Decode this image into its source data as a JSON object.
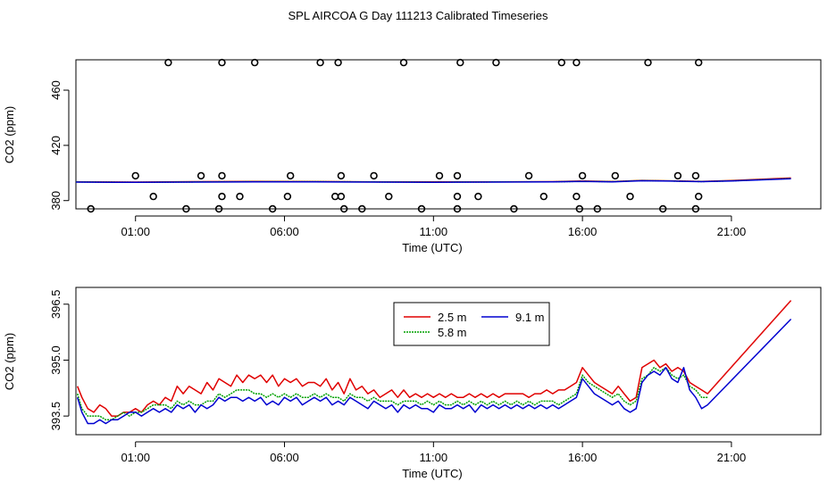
{
  "title": "SPL AIRCOA G  Day 111213  Calibrated Timeseries",
  "colors": {
    "axis": "#000000",
    "series_2_5": "#e00000",
    "series_5_8": "#00a000",
    "series_9_1": "#0000d0",
    "flags": "#000000",
    "background": "#ffffff"
  },
  "chart_data": [
    {
      "id": "top",
      "type": "line",
      "xlabel": "Time (UTC)",
      "ylabel": "CO2 (ppm)",
      "xunit": "hours UTC",
      "xlim": [
        -1.0,
        24.0
      ],
      "ylim": [
        374,
        482
      ],
      "xticks": [
        1,
        6,
        11,
        16,
        21
      ],
      "xticklabels": [
        "01:00",
        "06:00",
        "11:00",
        "16:00",
        "21:00"
      ],
      "yticks": [
        380,
        420,
        460
      ],
      "yticklabels": [
        "380",
        "420",
        "460"
      ],
      "series": [
        {
          "name": "2.5 m",
          "color_key": "series_2_5",
          "x": [
            -1.0,
            1,
            3,
            5,
            7,
            9,
            11,
            13,
            15,
            16,
            17,
            18,
            19,
            20,
            21,
            23
          ],
          "y": [
            393.6,
            393.4,
            393.7,
            393.9,
            393.8,
            393.6,
            393.5,
            393.6,
            393.7,
            394.2,
            393.8,
            394.6,
            394.3,
            393.9,
            394.5,
            396.4
          ]
        },
        {
          "name": "5.8 m",
          "color_key": "series_5_8",
          "x": [
            -1.0,
            1,
            3,
            5,
            7,
            9,
            11,
            13,
            15,
            16,
            17,
            18,
            19,
            20,
            21,
            23
          ],
          "y": [
            393.5,
            393.3,
            393.5,
            393.7,
            393.7,
            393.5,
            393.4,
            393.5,
            393.6,
            394.0,
            393.7,
            394.5,
            394.2,
            393.8,
            394.3,
            396.0
          ]
        },
        {
          "name": "9.1 m",
          "color_key": "series_9_1",
          "x": [
            -1.0,
            1,
            3,
            5,
            7,
            9,
            11,
            13,
            15,
            16,
            17,
            18,
            19,
            20,
            21,
            23
          ],
          "y": [
            393.4,
            393.2,
            393.4,
            393.6,
            393.6,
            393.4,
            393.3,
            393.4,
            393.5,
            393.9,
            393.6,
            394.4,
            394.1,
            393.7,
            394.2,
            395.8
          ]
        }
      ],
      "flags": {
        "type": "scatter",
        "marker": "open-circle",
        "points": [
          [
            -0.5,
            374
          ],
          [
            1.0,
            398
          ],
          [
            1.6,
            383
          ],
          [
            2.1,
            480
          ],
          [
            2.7,
            374
          ],
          [
            3.2,
            398
          ],
          [
            3.8,
            374
          ],
          [
            3.9,
            398
          ],
          [
            3.9,
            383
          ],
          [
            3.9,
            480
          ],
          [
            4.5,
            383
          ],
          [
            5.0,
            480
          ],
          [
            5.6,
            374
          ],
          [
            6.1,
            383
          ],
          [
            6.2,
            398
          ],
          [
            7.2,
            480
          ],
          [
            7.7,
            383
          ],
          [
            7.8,
            480
          ],
          [
            7.9,
            398
          ],
          [
            7.9,
            383
          ],
          [
            8.0,
            374
          ],
          [
            8.6,
            374
          ],
          [
            9.0,
            398
          ],
          [
            9.5,
            383
          ],
          [
            10.0,
            480
          ],
          [
            10.6,
            374
          ],
          [
            11.2,
            398
          ],
          [
            11.8,
            398
          ],
          [
            11.8,
            383
          ],
          [
            11.8,
            374
          ],
          [
            11.9,
            480
          ],
          [
            12.5,
            383
          ],
          [
            13.1,
            480
          ],
          [
            13.7,
            374
          ],
          [
            14.2,
            398
          ],
          [
            14.7,
            383
          ],
          [
            15.3,
            480
          ],
          [
            15.8,
            480
          ],
          [
            15.8,
            383
          ],
          [
            15.9,
            374
          ],
          [
            16.0,
            398
          ],
          [
            16.5,
            374
          ],
          [
            17.1,
            398
          ],
          [
            17.6,
            383
          ],
          [
            18.2,
            480
          ],
          [
            18.7,
            374
          ],
          [
            19.2,
            398
          ],
          [
            19.8,
            398
          ],
          [
            19.8,
            374
          ],
          [
            19.9,
            383
          ],
          [
            19.9,
            480
          ]
        ]
      }
    },
    {
      "id": "bottom",
      "type": "line",
      "xlabel": "Time (UTC)",
      "ylabel": "CO2 (ppm)",
      "xunit": "hours UTC",
      "xlim": [
        -1.0,
        24.0
      ],
      "ylim": [
        393.0,
        396.95
      ],
      "xticks": [
        1,
        6,
        11,
        16,
        21
      ],
      "xticklabels": [
        "01:00",
        "06:00",
        "11:00",
        "16:00",
        "21:00"
      ],
      "yticks": [
        393.5,
        395.0,
        396.5
      ],
      "yticklabels": [
        "393.5",
        "395.0",
        "396.5"
      ],
      "legend": {
        "position": "top-center",
        "entries": [
          "2.5 m",
          "5.8 m",
          "9.1 m"
        ]
      },
      "series": [
        {
          "name": "2.5 m",
          "color_key": "series_2_5",
          "x": [
            -0.95,
            -0.8,
            -0.6,
            -0.4,
            -0.2,
            0.0,
            0.2,
            0.4,
            0.6,
            0.8,
            1.0,
            1.2,
            1.4,
            1.6,
            1.8,
            2.0,
            2.2,
            2.4,
            2.6,
            2.8,
            3.0,
            3.2,
            3.4,
            3.6,
            3.8,
            4.0,
            4.2,
            4.4,
            4.6,
            4.8,
            5.0,
            5.2,
            5.4,
            5.6,
            5.8,
            6.0,
            6.2,
            6.4,
            6.6,
            6.8,
            7.0,
            7.2,
            7.4,
            7.6,
            7.8,
            8.0,
            8.2,
            8.4,
            8.6,
            8.8,
            9.0,
            9.2,
            9.4,
            9.6,
            9.8,
            10.0,
            10.2,
            10.4,
            10.6,
            10.8,
            11.0,
            11.2,
            11.4,
            11.6,
            11.8,
            12.0,
            12.2,
            12.4,
            12.6,
            12.8,
            13.0,
            13.2,
            13.4,
            13.6,
            13.8,
            14.0,
            14.2,
            14.4,
            14.6,
            14.8,
            15.0,
            15.2,
            15.4,
            15.6,
            15.8,
            16.0,
            16.2,
            16.4,
            16.6,
            16.8,
            17.0,
            17.2,
            17.4,
            17.6,
            17.8,
            18.0,
            18.2,
            18.4,
            18.6,
            18.8,
            19.0,
            19.2,
            19.4,
            19.6,
            19.8,
            20.0,
            20.2,
            23.0
          ],
          "y": [
            394.3,
            394.0,
            393.7,
            393.6,
            393.8,
            393.7,
            393.5,
            393.5,
            393.6,
            393.6,
            393.7,
            393.6,
            393.8,
            393.9,
            393.8,
            394.0,
            393.9,
            394.3,
            394.1,
            394.3,
            394.2,
            394.1,
            394.4,
            394.2,
            394.5,
            394.4,
            394.3,
            394.6,
            394.4,
            394.6,
            394.5,
            394.6,
            394.4,
            394.6,
            394.3,
            394.5,
            394.4,
            394.5,
            394.3,
            394.4,
            394.4,
            394.3,
            394.5,
            394.2,
            394.4,
            394.1,
            394.5,
            394.2,
            394.3,
            394.1,
            394.2,
            394.0,
            394.1,
            394.2,
            394.0,
            394.2,
            394.0,
            394.1,
            394.0,
            394.1,
            394.0,
            394.1,
            394.0,
            394.1,
            394.0,
            394.0,
            394.1,
            394.0,
            394.1,
            394.0,
            394.1,
            394.0,
            394.1,
            394.1,
            394.1,
            394.1,
            394.0,
            394.1,
            394.1,
            394.2,
            394.1,
            394.2,
            394.2,
            394.3,
            394.4,
            394.8,
            394.6,
            394.4,
            394.3,
            394.2,
            394.1,
            394.3,
            394.1,
            393.9,
            394.0,
            394.8,
            394.9,
            395.0,
            394.8,
            394.9,
            394.7,
            394.8,
            394.7,
            394.4,
            394.3,
            394.2,
            394.1,
            396.6
          ]
        },
        {
          "name": "5.8 m",
          "color_key": "series_5_8",
          "x": [
            -0.95,
            -0.8,
            -0.6,
            -0.4,
            -0.2,
            0.0,
            0.2,
            0.4,
            0.6,
            0.8,
            1.0,
            1.2,
            1.4,
            1.6,
            1.8,
            2.0,
            2.2,
            2.4,
            2.6,
            2.8,
            3.0,
            3.2,
            3.4,
            3.6,
            3.8,
            4.0,
            4.2,
            4.4,
            4.6,
            4.8,
            5.0,
            5.2,
            5.4,
            5.6,
            5.8,
            6.0,
            6.2,
            6.4,
            6.6,
            6.8,
            7.0,
            7.2,
            7.4,
            7.6,
            7.8,
            8.0,
            8.2,
            8.4,
            8.6,
            8.8,
            9.0,
            9.2,
            9.4,
            9.6,
            9.8,
            10.0,
            10.2,
            10.4,
            10.6,
            10.8,
            11.0,
            11.2,
            11.4,
            11.6,
            11.8,
            12.0,
            12.2,
            12.4,
            12.6,
            12.8,
            13.0,
            13.2,
            13.4,
            13.6,
            13.8,
            14.0,
            14.2,
            14.4,
            14.6,
            14.8,
            15.0,
            15.2,
            15.4,
            15.6,
            15.8,
            16.0,
            16.2,
            16.4,
            16.6,
            16.8,
            17.0,
            17.2,
            17.4,
            17.6,
            17.8,
            18.0,
            18.2,
            18.4,
            18.6,
            18.8,
            19.0,
            19.2,
            19.4,
            19.6,
            19.8,
            20.0,
            20.2
          ],
          "y": [
            394.1,
            393.7,
            393.5,
            393.5,
            393.5,
            393.4,
            393.4,
            393.5,
            393.6,
            393.5,
            393.6,
            393.6,
            393.7,
            393.8,
            393.8,
            393.8,
            393.7,
            393.9,
            393.8,
            393.9,
            393.8,
            393.8,
            393.9,
            393.9,
            394.1,
            394.0,
            394.1,
            394.2,
            394.2,
            394.2,
            394.1,
            394.1,
            394.0,
            394.1,
            394.0,
            394.1,
            394.0,
            394.1,
            394.0,
            394.0,
            394.1,
            394.0,
            394.1,
            394.0,
            394.0,
            393.9,
            394.1,
            394.0,
            394.0,
            393.9,
            394.0,
            393.9,
            393.9,
            393.9,
            393.8,
            393.9,
            393.9,
            393.9,
            393.8,
            393.9,
            393.8,
            393.9,
            393.8,
            393.8,
            393.9,
            393.8,
            393.9,
            393.8,
            393.9,
            393.8,
            393.9,
            393.8,
            393.9,
            393.8,
            393.9,
            393.8,
            393.9,
            393.8,
            393.9,
            393.9,
            393.9,
            393.8,
            393.9,
            394.0,
            394.1,
            394.6,
            394.4,
            394.3,
            394.2,
            394.1,
            394.0,
            394.1,
            393.9,
            393.8,
            393.9,
            394.5,
            394.6,
            394.8,
            394.7,
            394.8,
            394.6,
            394.5,
            394.6,
            394.3,
            394.2,
            394.0,
            394.0
          ]
        },
        {
          "name": "9.1 m",
          "color_key": "series_9_1",
          "x": [
            -0.95,
            -0.8,
            -0.6,
            -0.4,
            -0.2,
            0.0,
            0.2,
            0.4,
            0.6,
            0.8,
            1.0,
            1.2,
            1.4,
            1.6,
            1.8,
            2.0,
            2.2,
            2.4,
            2.6,
            2.8,
            3.0,
            3.2,
            3.4,
            3.6,
            3.8,
            4.0,
            4.2,
            4.4,
            4.6,
            4.8,
            5.0,
            5.2,
            5.4,
            5.6,
            5.8,
            6.0,
            6.2,
            6.4,
            6.6,
            6.8,
            7.0,
            7.2,
            7.4,
            7.6,
            7.8,
            8.0,
            8.2,
            8.4,
            8.6,
            8.8,
            9.0,
            9.2,
            9.4,
            9.6,
            9.8,
            10.0,
            10.2,
            10.4,
            10.6,
            10.8,
            11.0,
            11.2,
            11.4,
            11.6,
            11.8,
            12.0,
            12.2,
            12.4,
            12.6,
            12.8,
            13.0,
            13.2,
            13.4,
            13.6,
            13.8,
            14.0,
            14.2,
            14.4,
            14.6,
            14.8,
            15.0,
            15.2,
            15.4,
            15.6,
            15.8,
            16.0,
            16.2,
            16.4,
            16.6,
            16.8,
            17.0,
            17.2,
            17.4,
            17.6,
            17.8,
            18.0,
            18.2,
            18.4,
            18.6,
            18.8,
            19.0,
            19.2,
            19.4,
            19.6,
            19.8,
            20.0,
            20.2,
            23.0
          ],
          "y": [
            394.0,
            393.6,
            393.3,
            393.3,
            393.4,
            393.3,
            393.4,
            393.4,
            393.5,
            393.6,
            393.6,
            393.5,
            393.6,
            393.7,
            393.6,
            393.7,
            393.6,
            393.8,
            393.7,
            393.8,
            393.6,
            393.8,
            393.7,
            393.8,
            394.0,
            393.9,
            394.0,
            394.0,
            393.9,
            394.0,
            393.9,
            394.0,
            393.8,
            393.9,
            393.8,
            394.0,
            393.9,
            394.0,
            393.8,
            393.9,
            394.0,
            393.9,
            394.0,
            393.8,
            393.9,
            393.8,
            394.0,
            393.9,
            393.8,
            393.7,
            393.9,
            393.8,
            393.7,
            393.8,
            393.6,
            393.8,
            393.7,
            393.8,
            393.7,
            393.7,
            393.6,
            393.8,
            393.7,
            393.7,
            393.8,
            393.7,
            393.8,
            393.6,
            393.8,
            393.7,
            393.8,
            393.7,
            393.8,
            393.7,
            393.8,
            393.7,
            393.8,
            393.7,
            393.8,
            393.7,
            393.8,
            393.7,
            393.8,
            393.9,
            394.0,
            394.5,
            394.3,
            394.1,
            394.0,
            393.9,
            393.8,
            393.9,
            393.7,
            393.6,
            393.7,
            394.4,
            394.6,
            394.7,
            394.6,
            394.8,
            394.5,
            394.4,
            394.8,
            394.2,
            394.0,
            393.7,
            393.8,
            396.1
          ]
        }
      ]
    }
  ]
}
